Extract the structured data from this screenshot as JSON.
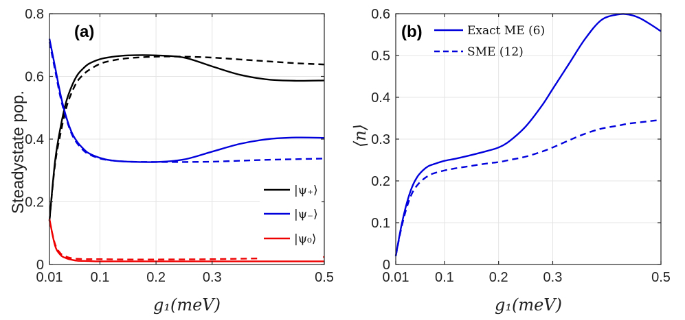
{
  "chart_data": [
    {
      "type": "line",
      "panel_label": "(a)",
      "xlabel": "g₁(meV)",
      "ylabel": "Steadystate pop.",
      "xlim": [
        0.01,
        0.5
      ],
      "ylim": [
        0,
        0.8
      ],
      "xticks": [
        "0.01",
        "0.1",
        "0.2",
        "0.3",
        "0.5"
      ],
      "xtick_values": [
        0.01,
        0.1,
        0.2,
        0.3,
        0.5
      ],
      "yticks": [
        "0",
        "0.2",
        "0.4",
        "0.6",
        "0.8"
      ],
      "ytick_values": [
        0,
        0.2,
        0.4,
        0.6,
        0.8
      ],
      "grid": true,
      "legend_position": "lower-right",
      "legend": [
        {
          "label": "|ψ₊⟩",
          "color": "#000000"
        },
        {
          "label": "|ψ₋⟩",
          "color": "#0000dd"
        },
        {
          "label": "|ψ₀⟩",
          "color": "#ee0000"
        }
      ],
      "series": [
        {
          "state": "psi_plus",
          "method": "exact",
          "color": "#000000",
          "dash": "solid",
          "x": [
            0.01,
            0.02,
            0.03,
            0.04,
            0.05,
            0.06,
            0.07,
            0.08,
            0.1,
            0.12,
            0.15,
            0.2,
            0.25,
            0.3,
            0.35,
            0.4,
            0.45,
            0.5
          ],
          "y": [
            0.14,
            0.33,
            0.44,
            0.52,
            0.57,
            0.605,
            0.625,
            0.64,
            0.655,
            0.662,
            0.667,
            0.667,
            0.66,
            0.632,
            0.605,
            0.59,
            0.586,
            0.587
          ]
        },
        {
          "state": "psi_plus",
          "method": "sme",
          "color": "#000000",
          "dash": "dashed",
          "x": [
            0.01,
            0.02,
            0.03,
            0.04,
            0.05,
            0.06,
            0.07,
            0.08,
            0.1,
            0.12,
            0.15,
            0.2,
            0.25,
            0.3,
            0.35,
            0.4,
            0.45,
            0.5
          ],
          "y": [
            0.14,
            0.32,
            0.42,
            0.5,
            0.55,
            0.585,
            0.605,
            0.62,
            0.64,
            0.65,
            0.658,
            0.663,
            0.663,
            0.66,
            0.654,
            0.648,
            0.642,
            0.638
          ]
        },
        {
          "state": "psi_minus",
          "method": "exact",
          "color": "#0000dd",
          "dash": "solid",
          "x": [
            0.01,
            0.02,
            0.03,
            0.04,
            0.05,
            0.06,
            0.07,
            0.08,
            0.1,
            0.12,
            0.15,
            0.2,
            0.25,
            0.3,
            0.35,
            0.4,
            0.45,
            0.5
          ],
          "y": [
            0.72,
            0.63,
            0.54,
            0.47,
            0.42,
            0.39,
            0.37,
            0.355,
            0.34,
            0.332,
            0.328,
            0.327,
            0.335,
            0.36,
            0.385,
            0.4,
            0.405,
            0.404
          ]
        },
        {
          "state": "psi_minus",
          "method": "sme",
          "color": "#0000dd",
          "dash": "dashed",
          "x": [
            0.01,
            0.02,
            0.03,
            0.04,
            0.05,
            0.06,
            0.07,
            0.08,
            0.1,
            0.12,
            0.15,
            0.2,
            0.25,
            0.3,
            0.35,
            0.4,
            0.45,
            0.5
          ],
          "y": [
            0.71,
            0.62,
            0.53,
            0.465,
            0.415,
            0.385,
            0.365,
            0.352,
            0.338,
            0.332,
            0.328,
            0.327,
            0.327,
            0.328,
            0.331,
            0.334,
            0.336,
            0.338
          ]
        },
        {
          "state": "psi_zero",
          "method": "exact",
          "color": "#ee0000",
          "dash": "solid",
          "x": [
            0.01,
            0.02,
            0.03,
            0.04,
            0.05,
            0.06,
            0.08,
            0.1,
            0.15,
            0.2,
            0.3,
            0.4,
            0.5
          ],
          "y": [
            0.145,
            0.06,
            0.03,
            0.02,
            0.015,
            0.012,
            0.011,
            0.01,
            0.01,
            0.01,
            0.01,
            0.01,
            0.01
          ]
        },
        {
          "state": "psi_zero",
          "method": "sme",
          "color": "#ee0000",
          "dash": "dashed",
          "x": [
            0.01,
            0.02,
            0.03,
            0.04,
            0.05,
            0.06,
            0.08,
            0.1,
            0.15,
            0.2,
            0.3,
            0.4,
            0.5
          ],
          "y": [
            0.14,
            0.065,
            0.035,
            0.025,
            0.02,
            0.018,
            0.017,
            0.017,
            0.016,
            0.016,
            0.017,
            0.02,
            0.024
          ]
        }
      ]
    },
    {
      "type": "line",
      "panel_label": "(b)",
      "xlabel": "g₁(meV)",
      "ylabel": "⟨n⟩",
      "xlim": [
        0.01,
        0.5
      ],
      "ylim": [
        0,
        0.6
      ],
      "xticks": [
        "0.01",
        "0.1",
        "0.2",
        "0.3",
        "0.5"
      ],
      "xtick_values": [
        0.01,
        0.1,
        0.2,
        0.3,
        0.5
      ],
      "yticks": [
        "0",
        "0.1",
        "0.2",
        "0.3",
        "0.4",
        "0.5",
        "0.6"
      ],
      "ytick_values": [
        0,
        0.1,
        0.2,
        0.3,
        0.4,
        0.5,
        0.6
      ],
      "grid": true,
      "legend_position": "top-left",
      "legend": [
        {
          "label": "Exact ME (6)",
          "color": "#0000dd",
          "dash": "solid"
        },
        {
          "label": "SME (12)",
          "color": "#0000dd",
          "dash": "dashed"
        }
      ],
      "series": [
        {
          "method": "exact",
          "color": "#0000dd",
          "dash": "solid",
          "x": [
            0.01,
            0.02,
            0.03,
            0.04,
            0.05,
            0.06,
            0.07,
            0.08,
            0.1,
            0.12,
            0.15,
            0.18,
            0.2,
            0.22,
            0.25,
            0.28,
            0.3,
            0.33,
            0.36,
            0.39,
            0.42,
            0.44,
            0.46,
            0.48,
            0.5
          ],
          "y": [
            0.02,
            0.09,
            0.145,
            0.185,
            0.21,
            0.225,
            0.235,
            0.24,
            0.248,
            0.253,
            0.262,
            0.272,
            0.28,
            0.295,
            0.33,
            0.38,
            0.42,
            0.48,
            0.54,
            0.585,
            0.598,
            0.598,
            0.59,
            0.575,
            0.558
          ]
        },
        {
          "method": "sme",
          "color": "#0000dd",
          "dash": "dashed",
          "x": [
            0.01,
            0.02,
            0.03,
            0.04,
            0.05,
            0.06,
            0.07,
            0.08,
            0.1,
            0.12,
            0.15,
            0.18,
            0.2,
            0.22,
            0.25,
            0.28,
            0.3,
            0.33,
            0.36,
            0.39,
            0.42,
            0.44,
            0.46,
            0.48,
            0.5
          ],
          "y": [
            0.02,
            0.085,
            0.135,
            0.17,
            0.19,
            0.203,
            0.212,
            0.218,
            0.225,
            0.23,
            0.236,
            0.242,
            0.245,
            0.25,
            0.258,
            0.27,
            0.28,
            0.297,
            0.313,
            0.325,
            0.332,
            0.337,
            0.34,
            0.343,
            0.346
          ]
        }
      ]
    }
  ]
}
